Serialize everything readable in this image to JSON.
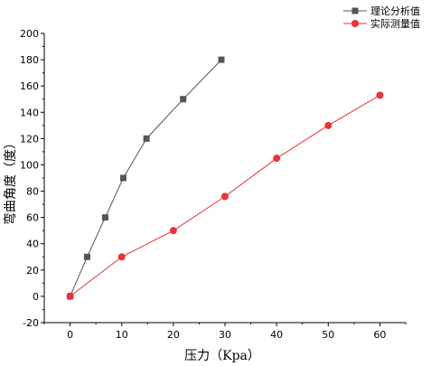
{
  "chart_data": {
    "type": "line",
    "xlabel": "压力（Kpa）",
    "ylabel": "弯曲角度（度）",
    "xlim": [
      -5,
      65
    ],
    "ylim": [
      -20,
      200
    ],
    "xticks": [
      0,
      10,
      20,
      30,
      40,
      50,
      60
    ],
    "yticks": [
      -20,
      0,
      20,
      40,
      60,
      80,
      100,
      120,
      140,
      160,
      180,
      200
    ],
    "grid": false,
    "legend_position": "top-right",
    "series": [
      {
        "name": "理论分析值",
        "marker": "square",
        "color": "#555555",
        "x": [
          0,
          3.3,
          6.8,
          10.3,
          14.8,
          21.9,
          29.3
        ],
        "y": [
          0,
          30,
          60,
          90,
          120,
          150,
          180
        ]
      },
      {
        "name": "实际测量值",
        "marker": "circle",
        "color": "#e8323c",
        "x": [
          0,
          10,
          20,
          30,
          40,
          50,
          60
        ],
        "y": [
          0,
          30,
          50,
          76,
          105,
          130,
          153
        ]
      }
    ]
  }
}
